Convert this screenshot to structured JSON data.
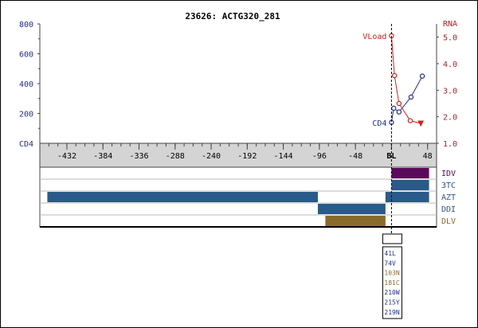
{
  "chart_data": [
    {
      "type": "line",
      "title": "23626: ACTG320_281",
      "xlabel": "",
      "xlim": [
        -468,
        60
      ],
      "x_ticks": [
        -432,
        -384,
        -336,
        -288,
        -240,
        -192,
        -144,
        -96,
        -48,
        0,
        48
      ],
      "x_tick_labels": [
        "-432",
        "-384",
        "-336",
        "-288",
        "-240",
        "-192",
        "-144",
        "-96",
        "-48",
        "BL",
        "48"
      ],
      "baseline_x": 0,
      "y_left": {
        "label": "CD4",
        "ylim": [
          0,
          800
        ],
        "ticks": [
          200,
          400,
          600,
          800
        ],
        "tick_labels": [
          "200",
          "400",
          "600",
          "800"
        ],
        "color": "#1f2f8f"
      },
      "y_right": {
        "label": "RNA",
        "ylim": [
          1.0,
          5.5
        ],
        "ticks": [
          1.0,
          2.0,
          3.0,
          4.0,
          5.0
        ],
        "tick_labels": [
          "1.0",
          "2.0",
          "3.0",
          "4.0",
          "5.0"
        ],
        "color": "#b02020"
      },
      "grid": false,
      "series": [
        {
          "name": "CD4",
          "axis": "left",
          "color": "#1f2f8f",
          "x": [
            0,
            3,
            10,
            26,
            41
          ],
          "y": [
            140,
            235,
            210,
            310,
            450
          ]
        },
        {
          "name": "VLoad",
          "axis": "right",
          "color": "#d02020",
          "x": [
            0,
            4,
            10,
            25,
            39
          ],
          "y": [
            5.05,
            3.55,
            2.5,
            1.85,
            1.75
          ],
          "last_marker": "triangle-down"
        }
      ]
    },
    {
      "type": "gantt",
      "xlim": [
        -468,
        60
      ],
      "rows": [
        "IDV",
        "3TC",
        "AZT",
        "DDI",
        "DLV"
      ],
      "row_colors": [
        "#5a0a5a",
        "#2a5a8a",
        "#2a5a8a",
        "#2a5a8a",
        "#8a6a2a"
      ],
      "bars": [
        {
          "row": "IDV",
          "start": 0,
          "end": 50
        },
        {
          "row": "3TC",
          "start": 0,
          "end": 50
        },
        {
          "row": "AZT",
          "start": -458,
          "end": -98
        },
        {
          "row": "AZT",
          "start": -8,
          "end": 50
        },
        {
          "row": "DDI",
          "start": -98,
          "end": -8
        },
        {
          "row": "DLV",
          "start": -88,
          "end": -8
        }
      ]
    }
  ],
  "mutations": {
    "items": [
      {
        "text": "41L",
        "color": "#1f2f8f"
      },
      {
        "text": "74V",
        "color": "#1f2f8f"
      },
      {
        "text": "103N",
        "color": "#8a6a2a"
      },
      {
        "text": "181C",
        "color": "#8a6a2a"
      },
      {
        "text": "210W",
        "color": "#1f2f8f"
      },
      {
        "text": "215Y",
        "color": "#1f2f8f"
      },
      {
        "text": "219N",
        "color": "#1f2f8f"
      }
    ]
  }
}
